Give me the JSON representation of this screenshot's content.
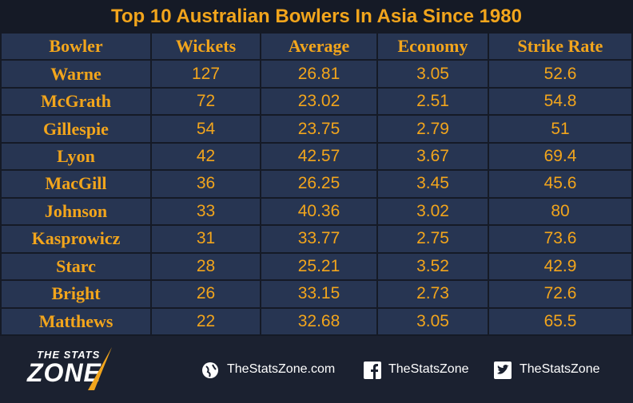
{
  "title": "Top 10 Australian Bowlers In Asia Since 1980",
  "table": {
    "header": [
      "Bowler",
      "Wickets",
      "Average",
      "Economy",
      "Strike Rate"
    ],
    "rows": [
      [
        "Warne",
        "127",
        "26.81",
        "3.05",
        "52.6"
      ],
      [
        "McGrath",
        "72",
        "23.02",
        "2.51",
        "54.8"
      ],
      [
        "Gillespie",
        "54",
        "23.75",
        "2.79",
        "51"
      ],
      [
        "Lyon",
        "42",
        "42.57",
        "3.67",
        "69.4"
      ],
      [
        "MacGill",
        "36",
        "26.25",
        "3.45",
        "45.6"
      ],
      [
        "Johnson",
        "33",
        "40.36",
        "3.02",
        "80"
      ],
      [
        "Kasprowicz",
        "31",
        "33.77",
        "2.75",
        "73.6"
      ],
      [
        "Starc",
        "28",
        "25.21",
        "3.52",
        "42.9"
      ],
      [
        "Bright",
        "26",
        "33.15",
        "2.73",
        "72.6"
      ],
      [
        "Matthews",
        "22",
        "32.68",
        "3.05",
        "65.5"
      ]
    ]
  },
  "footer": {
    "logo_top": "THE STATS",
    "logo_bottom": "ZONE",
    "website": "TheStatsZone.com",
    "facebook": "TheStatsZone",
    "twitter": "TheStatsZone"
  }
}
